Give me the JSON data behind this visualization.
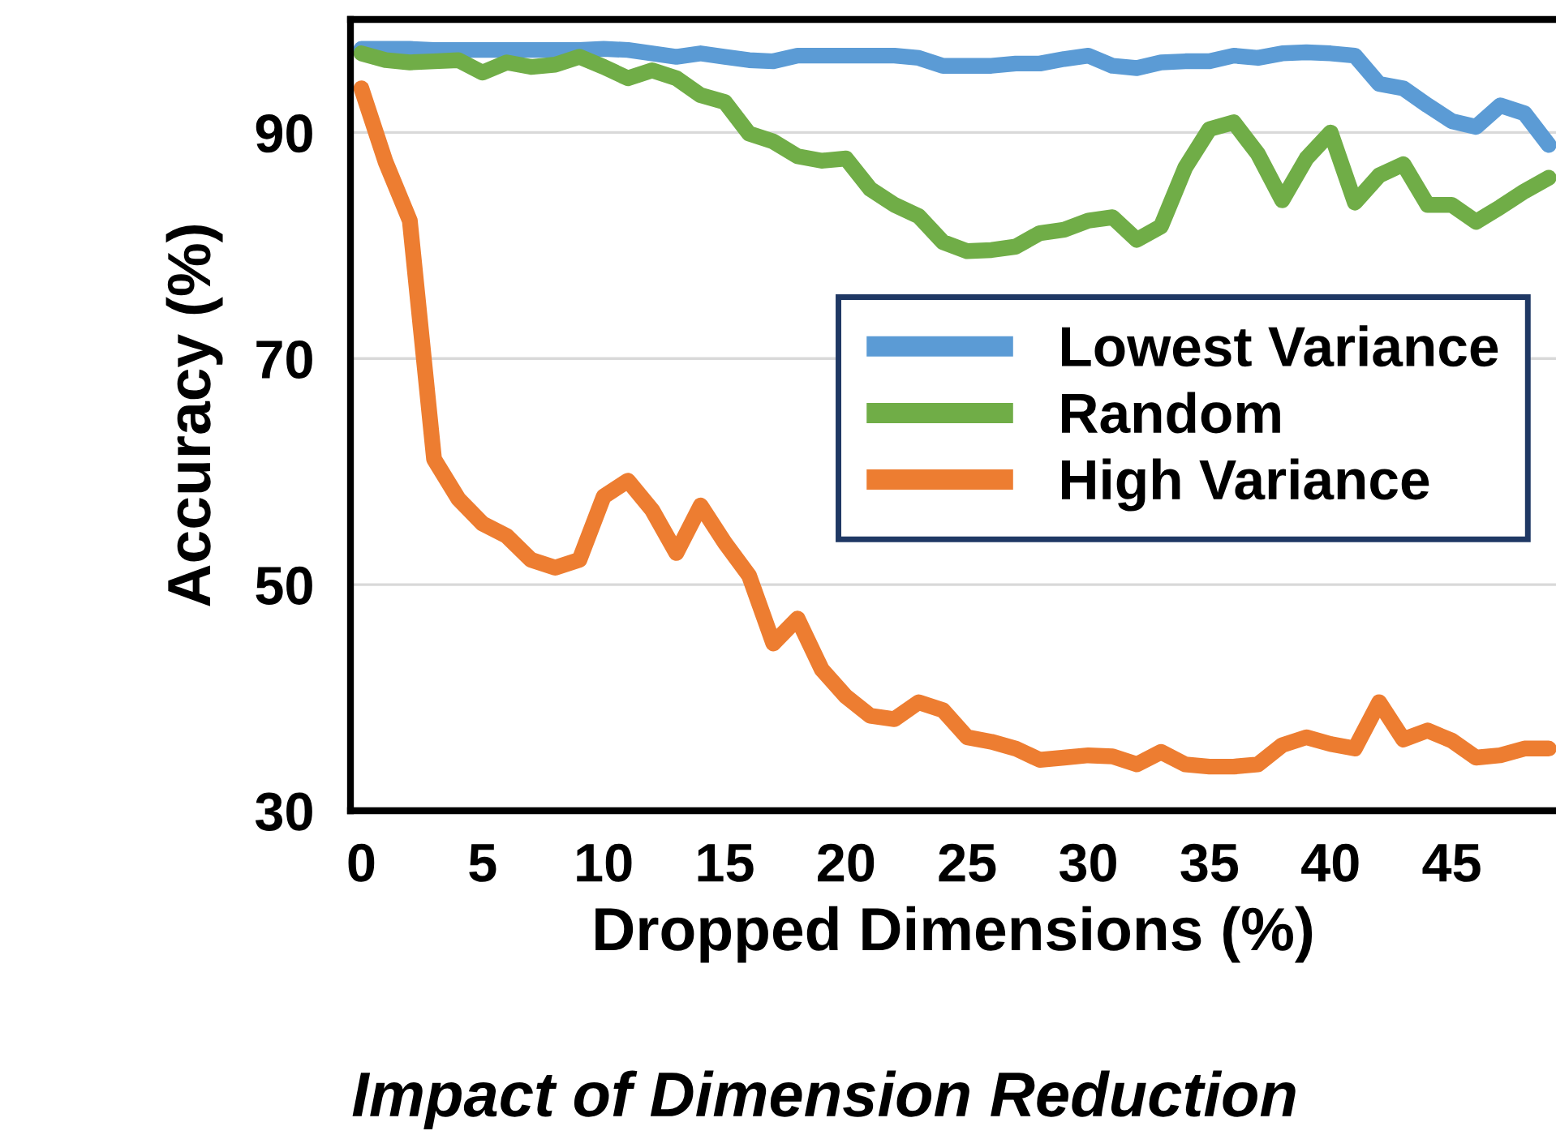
{
  "chart_data": {
    "type": "line",
    "title": "Impact of Dimension Reduction",
    "xlabel": "Dropped Dimensions (%)",
    "ylabel": "Accuracy (%)",
    "x": [
      0,
      1,
      2,
      3,
      4,
      5,
      6,
      7,
      8,
      9,
      10,
      11,
      12,
      13,
      14,
      15,
      16,
      17,
      18,
      19,
      20,
      21,
      22,
      23,
      24,
      25,
      26,
      27,
      28,
      29,
      30,
      31,
      32,
      33,
      34,
      35,
      36,
      37,
      38,
      39,
      40,
      41,
      42,
      43,
      44,
      45,
      46,
      47,
      48,
      49
    ],
    "series": [
      {
        "name": "Lowest Variance",
        "color": "#5b9bd5",
        "values": [
          97.4,
          97.4,
          97.4,
          97.3,
          97.3,
          97.3,
          97.3,
          97.3,
          97.3,
          97.3,
          97.4,
          97.3,
          97.0,
          96.7,
          97.0,
          96.7,
          96.4,
          96.3,
          96.8,
          96.8,
          96.8,
          96.8,
          96.8,
          96.6,
          95.9,
          95.9,
          95.9,
          96.1,
          96.1,
          96.5,
          96.8,
          95.9,
          95.7,
          96.2,
          96.3,
          96.3,
          96.8,
          96.6,
          97.0,
          97.1,
          97.0,
          96.8,
          94.3,
          93.9,
          92.4,
          91.0,
          90.5,
          92.4,
          91.7,
          88.9
        ]
      },
      {
        "name": "Random",
        "color": "#70ad47",
        "values": [
          97.0,
          96.4,
          96.2,
          96.3,
          96.4,
          95.3,
          96.2,
          95.8,
          96.0,
          96.7,
          95.8,
          94.8,
          95.5,
          94.8,
          93.3,
          92.7,
          89.9,
          89.2,
          87.9,
          87.5,
          87.7,
          85.0,
          83.6,
          82.6,
          80.3,
          79.5,
          79.6,
          79.9,
          81.1,
          81.4,
          82.2,
          82.5,
          80.5,
          81.7,
          86.9,
          90.3,
          90.9,
          88.1,
          84.0,
          87.7,
          90.0,
          83.8,
          86.2,
          87.2,
          83.6,
          83.6,
          82.1,
          83.4,
          84.8,
          86.0
        ]
      },
      {
        "name": "High Variance",
        "color": "#ed7d31",
        "values": [
          93.9,
          87.4,
          82.2,
          61.1,
          57.6,
          55.4,
          54.3,
          52.2,
          51.5,
          52.2,
          57.8,
          59.2,
          56.6,
          52.8,
          57.0,
          53.7,
          50.8,
          44.8,
          47.0,
          42.5,
          40.1,
          38.4,
          38.1,
          39.6,
          38.9,
          36.5,
          36.1,
          35.5,
          34.5,
          34.7,
          34.9,
          34.8,
          34.1,
          35.2,
          34.1,
          33.9,
          33.9,
          34.1,
          35.8,
          36.5,
          35.9,
          35.5,
          39.6,
          36.3,
          37.1,
          36.2,
          34.7,
          34.9,
          35.5,
          35.5
        ]
      }
    ],
    "xlim": [
      -0.45,
      49.3
    ],
    "xticks": [
      0,
      5,
      10,
      15,
      20,
      25,
      30,
      35,
      40,
      45
    ],
    "ylim": [
      30,
      100
    ],
    "yticks": [
      30,
      50,
      70,
      90
    ],
    "grid": "y",
    "legend": "right",
    "marker": "none",
    "line_style": "solid"
  }
}
